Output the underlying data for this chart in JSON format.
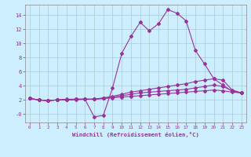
{
  "xlabel": "Windchill (Refroidissement éolien,°C)",
  "background_color": "#cceeff",
  "grid_color": "#aacccc",
  "line_color": "#993399",
  "x_ticks": [
    0,
    1,
    2,
    3,
    4,
    5,
    6,
    7,
    8,
    9,
    10,
    11,
    12,
    13,
    14,
    15,
    16,
    17,
    18,
    19,
    20,
    21,
    22,
    23
  ],
  "y_ticks": [
    0,
    2,
    4,
    6,
    8,
    10,
    12,
    14
  ],
  "ylim": [
    -1.2,
    15.5
  ],
  "xlim": [
    -0.5,
    23.5
  ],
  "line1_y": [
    2.2,
    2.0,
    1.9,
    2.0,
    2.1,
    2.1,
    2.1,
    -0.4,
    -0.2,
    3.7,
    8.6,
    11.0,
    13.0,
    11.8,
    12.8,
    14.8,
    14.3,
    13.2,
    9.0,
    7.1,
    5.0,
    4.1,
    3.2,
    3.0
  ],
  "line2_y": [
    2.2,
    2.0,
    1.9,
    2.0,
    2.0,
    2.1,
    2.1,
    2.1,
    2.3,
    2.5,
    2.8,
    3.1,
    3.3,
    3.5,
    3.7,
    3.9,
    4.1,
    4.3,
    4.6,
    4.8,
    5.0,
    4.8,
    3.4,
    3.0
  ],
  "line3_y": [
    2.2,
    2.0,
    1.9,
    2.0,
    2.0,
    2.1,
    2.1,
    2.1,
    2.2,
    2.4,
    2.6,
    2.8,
    3.0,
    3.1,
    3.2,
    3.3,
    3.4,
    3.5,
    3.7,
    3.9,
    4.1,
    3.9,
    3.3,
    3.0
  ],
  "line4_y": [
    2.2,
    2.0,
    1.9,
    2.0,
    2.0,
    2.0,
    2.1,
    2.1,
    2.2,
    2.3,
    2.4,
    2.5,
    2.6,
    2.7,
    2.8,
    2.9,
    3.0,
    3.1,
    3.2,
    3.3,
    3.4,
    3.3,
    3.1,
    3.0
  ]
}
